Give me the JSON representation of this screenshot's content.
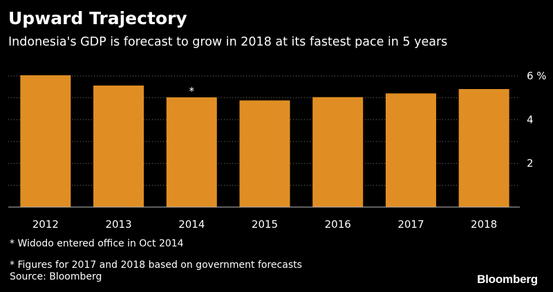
{
  "header": {
    "title": "Upward Trajectory",
    "subtitle": "Indonesia's GDP is forecast to grow in 2018 at its fastest pace in 5 years"
  },
  "chart_data": {
    "type": "bar",
    "categories": [
      "2012",
      "2013",
      "2014",
      "2015",
      "2016",
      "2017",
      "2018"
    ],
    "values": [
      6.03,
      5.56,
      5.02,
      4.88,
      5.03,
      5.2,
      5.4
    ],
    "ylim": [
      0,
      6
    ],
    "yticks": [
      2,
      4,
      6
    ],
    "ytick_labels": [
      "2",
      "4",
      "6 %"
    ],
    "annotations": [
      {
        "category": "2014",
        "text": "*"
      }
    ],
    "grid": true,
    "bar_color": "#e08e24",
    "background": "#000000"
  },
  "notes": [
    "* Widodo entered office in Oct 2014",
    "* Figures for 2017 and 2018 based on government forecasts",
    "Source: Bloomberg"
  ],
  "brand": "Bloomberg"
}
